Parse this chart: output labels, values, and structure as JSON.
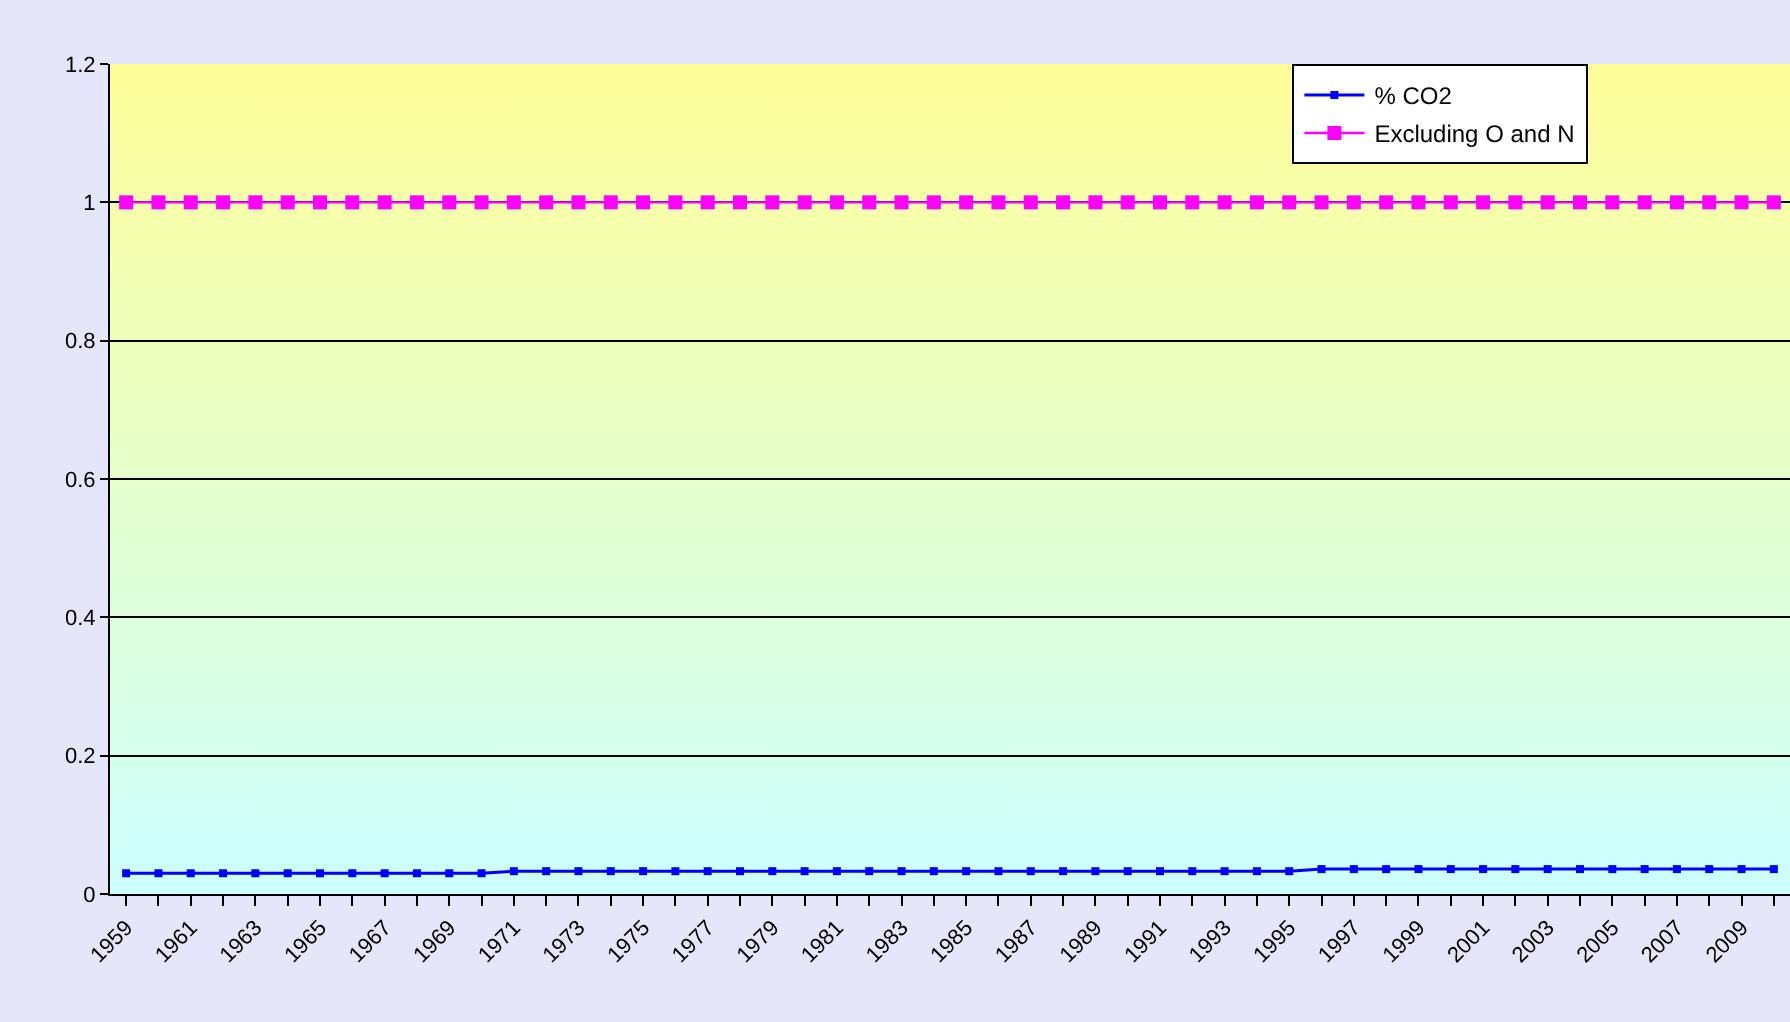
{
  "chart_data": {
    "type": "line",
    "categories": [
      "1959",
      null,
      "1961",
      null,
      "1963",
      null,
      "1965",
      null,
      "1967",
      null,
      "1969",
      null,
      "1971",
      null,
      "1973",
      null,
      "1975",
      null,
      "1977",
      null,
      "1979",
      null,
      "1981",
      null,
      "1983",
      null,
      "1985",
      null,
      "1987",
      null,
      "1989",
      null,
      "1991",
      null,
      "1993",
      null,
      "1995",
      null,
      "1997",
      null,
      "1999",
      null,
      "2001",
      null,
      "2003",
      null,
      "2005",
      null,
      "2007",
      null,
      "2009",
      null
    ],
    "series": [
      {
        "name": "% CO2",
        "color": "#0000ff",
        "values": [
          0.03,
          0.03,
          0.03,
          0.03,
          0.03,
          0.03,
          0.03,
          0.03,
          0.03,
          0.03,
          0.03,
          0.03,
          0.033,
          0.033,
          0.033,
          0.033,
          0.033,
          0.033,
          0.033,
          0.033,
          0.033,
          0.033,
          0.033,
          0.033,
          0.033,
          0.033,
          0.033,
          0.033,
          0.033,
          0.033,
          0.033,
          0.033,
          0.033,
          0.033,
          0.033,
          0.033,
          0.033,
          0.036,
          0.036,
          0.036,
          0.036,
          0.036,
          0.036,
          0.036,
          0.036,
          0.036,
          0.036,
          0.036,
          0.036,
          0.036,
          0.036,
          0.036
        ]
      },
      {
        "name": "Excluding O and N",
        "color": "#ff00ff",
        "values": [
          1,
          1,
          1,
          1,
          1,
          1,
          1,
          1,
          1,
          1,
          1,
          1,
          1,
          1,
          1,
          1,
          1,
          1,
          1,
          1,
          1,
          1,
          1,
          1,
          1,
          1,
          1,
          1,
          1,
          1,
          1,
          1,
          1,
          1,
          1,
          1,
          1,
          1,
          1,
          1,
          1,
          1,
          1,
          1,
          1,
          1,
          1,
          1,
          1,
          1,
          1,
          1
        ]
      }
    ],
    "ylim": [
      0,
      1.2
    ],
    "yticks": [
      0,
      0.2,
      0.4,
      0.6,
      0.8,
      1,
      1.2
    ],
    "grid": "y",
    "legend": "top right",
    "marker": "square",
    "line_style": "solid"
  }
}
